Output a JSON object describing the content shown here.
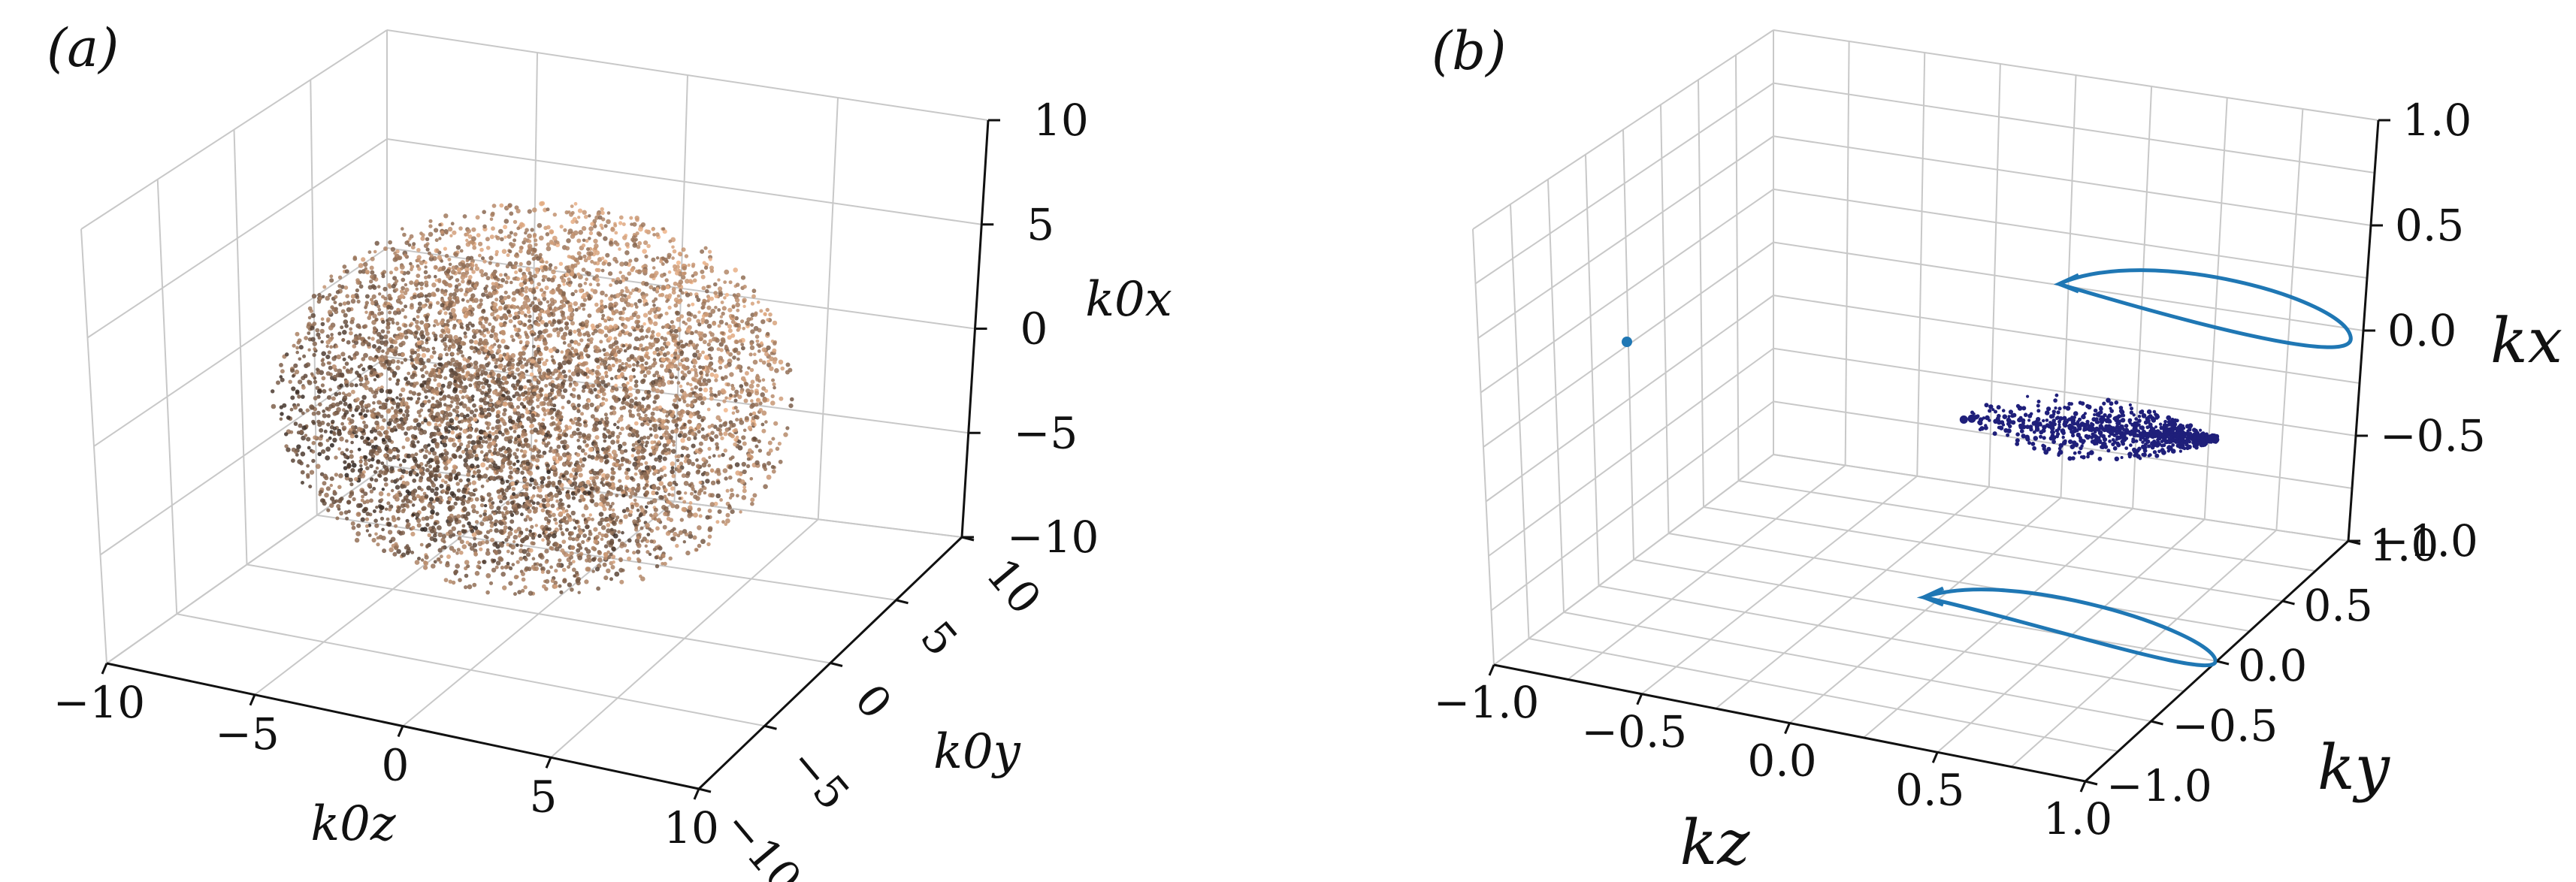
{
  "chart_data": [
    {
      "type": "scatter",
      "panel_label": "(a)",
      "xlabel": "k0z",
      "ylabel": "k0y",
      "zlabel": "k0x",
      "xlim": [
        -10,
        10
      ],
      "ylim": [
        -10,
        10
      ],
      "zlim": [
        -10,
        10
      ],
      "x_ticks": [
        "−10",
        "−5",
        "0",
        "5",
        "10"
      ],
      "y_ticks": [
        "−10",
        "−5",
        "0",
        "5",
        "10"
      ],
      "z_ticks": [
        "−10",
        "−5",
        "0",
        "5",
        "10"
      ],
      "series": [
        {
          "shape": "sphere",
          "radius": 8,
          "n_points": 6000,
          "color_light": "#f0b58a",
          "color_dark": "#2a211d"
        }
      ],
      "grid": true
    },
    {
      "type": "line",
      "panel_label": "(b)",
      "xlabel": "kz",
      "ylabel": "ky",
      "zlabel": "kx",
      "xlim": [
        -1.0,
        1.0
      ],
      "ylim": [
        -1.0,
        1.0
      ],
      "zlim": [
        -1.0,
        1.0
      ],
      "x_ticks": [
        "−1.0",
        "−0.5",
        "0.0",
        "0.5",
        "1.0"
      ],
      "y_ticks": [
        "−1.0",
        "−0.5",
        "0.0",
        "0.5",
        "1.0"
      ],
      "z_ticks": [
        "−1.0",
        "−0.5",
        "0.0",
        "0.5",
        "1.0"
      ],
      "series": [
        {
          "kind": "scatter",
          "color": "#1f1f7a",
          "description_shape": "ellipse",
          "center": [
            0.05,
            0.15,
            -0.35
          ],
          "n_points": 900
        },
        {
          "kind": "projection-loop",
          "plane": "kz=-1",
          "color": "#1f77b4",
          "center": [
            -1.0,
            0.15,
            0.0
          ]
        },
        {
          "kind": "projection-loop",
          "plane": "kx=-1",
          "color": "#1f77b4",
          "center": [
            0.05,
            0.15,
            -1.0
          ]
        },
        {
          "kind": "projection-point",
          "plane": "ky=1",
          "color": "#1f77b4"
        }
      ],
      "grid": true
    }
  ]
}
